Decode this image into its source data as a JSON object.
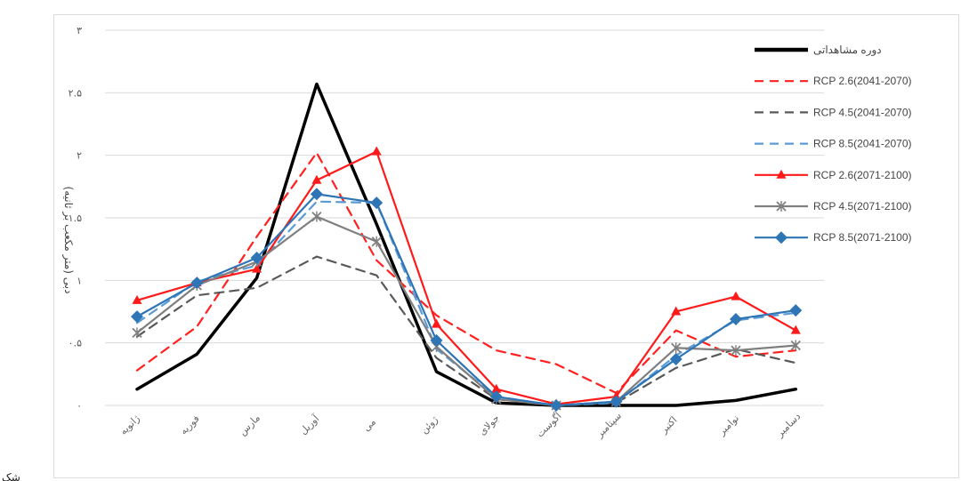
{
  "figure_caption_fragment": "شک",
  "chart_data": {
    "type": "line",
    "categories": [
      "ژانویه",
      "فوریه",
      "مارس",
      "آوریل",
      "می",
      "ژوئن",
      "جولای",
      "آگوست",
      "سپتامبر",
      "اکتبر",
      "نوامبر",
      "دسامبر"
    ],
    "ylabel": "دبی (متر مکعب بر ثانیه)",
    "ylim": [
      0,
      3
    ],
    "yticks": [
      "۰",
      "۰.۵",
      "۱",
      "۱.۵",
      "۲",
      "۲.۵",
      "۳"
    ],
    "grid": true,
    "legend_position": "right",
    "series": [
      {
        "name": "دوره مشاهداتی",
        "color": "#000000",
        "dash": "",
        "marker": "none",
        "width": 3.5,
        "values": [
          0.13,
          0.41,
          1.02,
          2.57,
          1.45,
          0.27,
          0.02,
          0.0,
          0.0,
          0.0,
          0.04,
          0.13
        ]
      },
      {
        "name": "RCP 2.6(2041-2070)",
        "color": "#ff2020",
        "dash": "10,7",
        "marker": "none",
        "width": 2.2,
        "values": [
          0.28,
          0.63,
          1.35,
          2.02,
          1.16,
          0.72,
          0.44,
          0.33,
          0.1,
          0.6,
          0.39,
          0.44
        ]
      },
      {
        "name": "RCP 4.5(2041-2070)",
        "color": "#595959",
        "dash": "10,7",
        "marker": "none",
        "width": 2.2,
        "values": [
          0.55,
          0.88,
          0.94,
          1.19,
          1.04,
          0.38,
          0.05,
          0.0,
          0.02,
          0.3,
          0.45,
          0.34
        ]
      },
      {
        "name": "RCP 8.5(2041-2070)",
        "color": "#5b9bd5",
        "dash": "10,7",
        "marker": "none",
        "width": 2.2,
        "values": [
          0.66,
          0.99,
          1.12,
          1.63,
          1.62,
          0.45,
          0.07,
          0.0,
          0.02,
          0.4,
          0.68,
          0.74
        ]
      },
      {
        "name": "RCP 2.6(2071-2100)",
        "color": "#ff1a1a",
        "dash": "",
        "marker": "triangle",
        "width": 2.2,
        "values": [
          0.84,
          0.98,
          1.09,
          1.8,
          2.03,
          0.65,
          0.13,
          0.01,
          0.07,
          0.75,
          0.87,
          0.6
        ]
      },
      {
        "name": "RCP 4.5(2071-2100)",
        "color": "#7f7f7f",
        "dash": "",
        "marker": "x",
        "width": 2.2,
        "values": [
          0.58,
          0.96,
          1.15,
          1.51,
          1.31,
          0.47,
          0.05,
          0.0,
          0.03,
          0.46,
          0.44,
          0.48
        ]
      },
      {
        "name": "RCP 8.5(2071-2100)",
        "color": "#2e75b6",
        "dash": "",
        "marker": "diamond",
        "width": 2.2,
        "values": [
          0.71,
          0.98,
          1.18,
          1.69,
          1.62,
          0.52,
          0.07,
          0.0,
          0.03,
          0.37,
          0.69,
          0.76
        ]
      }
    ]
  }
}
